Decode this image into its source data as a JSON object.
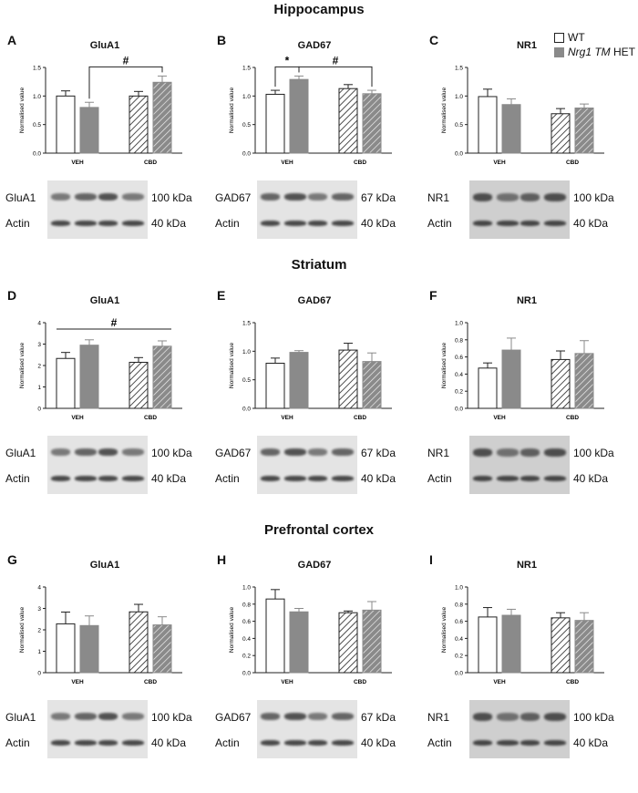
{
  "sections": [
    "Hippocampus",
    "Striatum",
    "Prefrontal cortex"
  ],
  "legend": {
    "wt": "WT",
    "het_italic": "Nrg1 TM",
    "het_suffix": " HET"
  },
  "colors": {
    "het_bar": "#8a8a8a",
    "wt_bar": "#ffffff",
    "axis": "#222222",
    "blot_bg": "#d9d9d9",
    "band": "#2b2b2b"
  },
  "ylabel": "Normalised value",
  "group_labels": [
    "VEH",
    "CBD"
  ],
  "panels": [
    {
      "letter": "A",
      "title": "GluA1",
      "blot": {
        "protein": "GluA1",
        "size": "100 kDa",
        "ctrl": "Actin",
        "ctrl_size": "40 kDa"
      },
      "chart_data": {
        "type": "bar",
        "categories": [
          "VEH",
          "CBD"
        ],
        "ylim": [
          0,
          1.5
        ],
        "yticks": [
          0.0,
          0.5,
          1.0,
          1.5
        ],
        "series": [
          {
            "name": "WT",
            "values": [
              1.0,
              1.0
            ],
            "errors": [
              0.09,
              0.08
            ]
          },
          {
            "name": "Nrg1 TM HET",
            "values": [
              0.8,
              1.24
            ],
            "errors": [
              0.09,
              0.11
            ]
          }
        ],
        "annotations": [
          {
            "text": "#",
            "from": "VEH HET",
            "to": "CBD HET"
          }
        ]
      }
    },
    {
      "letter": "B",
      "title": "GAD67",
      "blot": {
        "protein": "GAD67",
        "size": "67 kDa",
        "ctrl": "Actin",
        "ctrl_size": "40 kDa"
      },
      "chart_data": {
        "type": "bar",
        "categories": [
          "VEH",
          "CBD"
        ],
        "ylim": [
          0,
          1.5
        ],
        "yticks": [
          0.0,
          0.5,
          1.0,
          1.5
        ],
        "series": [
          {
            "name": "WT",
            "values": [
              1.03,
              1.13
            ],
            "errors": [
              0.07,
              0.07
            ]
          },
          {
            "name": "Nrg1 TM HET",
            "values": [
              1.29,
              1.04
            ],
            "errors": [
              0.06,
              0.06
            ]
          }
        ],
        "annotations": [
          {
            "text": "*",
            "from": "VEH WT",
            "to": "VEH HET"
          },
          {
            "text": "#",
            "from": "VEH HET",
            "to": "CBD HET"
          }
        ]
      }
    },
    {
      "letter": "C",
      "title": "NR1",
      "blot": {
        "protein": "NR1",
        "size": "100 kDa",
        "ctrl": "Actin",
        "ctrl_size": "40 kDa"
      },
      "chart_data": {
        "type": "bar",
        "categories": [
          "VEH",
          "CBD"
        ],
        "ylim": [
          0,
          1.5
        ],
        "yticks": [
          0.0,
          0.5,
          1.0,
          1.5
        ],
        "series": [
          {
            "name": "WT",
            "values": [
              0.99,
              0.69
            ],
            "errors": [
              0.13,
              0.09
            ]
          },
          {
            "name": "Nrg1 TM HET",
            "values": [
              0.85,
              0.79
            ],
            "errors": [
              0.1,
              0.07
            ]
          }
        ],
        "annotations": []
      }
    },
    {
      "letter": "D",
      "title": "GluA1",
      "blot": {
        "protein": "GluA1",
        "size": "100 kDa",
        "ctrl": "Actin",
        "ctrl_size": "40 kDa"
      },
      "chart_data": {
        "type": "bar",
        "categories": [
          "VEH",
          "CBD"
        ],
        "ylim": [
          0,
          4
        ],
        "yticks": [
          0,
          1,
          2,
          3,
          4
        ],
        "series": [
          {
            "name": "WT",
            "values": [
              2.33,
              2.15
            ],
            "errors": [
              0.28,
              0.22
            ]
          },
          {
            "name": "Nrg1 TM HET",
            "values": [
              2.95,
              2.9
            ],
            "errors": [
              0.25,
              0.25
            ]
          }
        ],
        "annotations": [
          {
            "text": "#",
            "from": "VEH WT",
            "to": "CBD HET",
            "level": 3.7
          }
        ]
      }
    },
    {
      "letter": "E",
      "title": "GAD67",
      "blot": {
        "protein": "GAD67",
        "size": "67 kDa",
        "ctrl": "Actin",
        "ctrl_size": "40 kDa"
      },
      "chart_data": {
        "type": "bar",
        "categories": [
          "VEH",
          "CBD"
        ],
        "ylim": [
          0,
          1.5
        ],
        "yticks": [
          0.0,
          0.5,
          1.0,
          1.5
        ],
        "series": [
          {
            "name": "WT",
            "values": [
              0.79,
              1.02
            ],
            "errors": [
              0.09,
              0.12
            ]
          },
          {
            "name": "Nrg1 TM HET",
            "values": [
              0.98,
              0.82
            ],
            "errors": [
              0.03,
              0.15
            ]
          }
        ],
        "annotations": []
      }
    },
    {
      "letter": "F",
      "title": "NR1",
      "blot": {
        "protein": "NR1",
        "size": "100 kDa",
        "ctrl": "Actin",
        "ctrl_size": "40 kDa"
      },
      "chart_data": {
        "type": "bar",
        "categories": [
          "VEH",
          "CBD"
        ],
        "ylim": [
          0,
          1.0
        ],
        "yticks": [
          0.0,
          0.2,
          0.4,
          0.6,
          0.8,
          1.0
        ],
        "series": [
          {
            "name": "WT",
            "values": [
              0.47,
              0.57
            ],
            "errors": [
              0.06,
              0.1
            ]
          },
          {
            "name": "Nrg1 TM HET",
            "values": [
              0.68,
              0.64
            ],
            "errors": [
              0.14,
              0.15
            ]
          }
        ],
        "annotations": []
      }
    },
    {
      "letter": "G",
      "title": "GluA1",
      "blot": {
        "protein": "GluA1",
        "size": "100 kDa",
        "ctrl": "Actin",
        "ctrl_size": "40 kDa"
      },
      "chart_data": {
        "type": "bar",
        "categories": [
          "VEH",
          "CBD"
        ],
        "ylim": [
          0,
          4
        ],
        "yticks": [
          0,
          1,
          2,
          3,
          4
        ],
        "series": [
          {
            "name": "WT",
            "values": [
              2.28,
              2.84
            ],
            "errors": [
              0.55,
              0.35
            ]
          },
          {
            "name": "Nrg1 TM HET",
            "values": [
              2.2,
              2.23
            ],
            "errors": [
              0.45,
              0.38
            ]
          }
        ],
        "annotations": []
      }
    },
    {
      "letter": "H",
      "title": "GAD67",
      "blot": {
        "protein": "GAD67",
        "size": "67 kDa",
        "ctrl": "Actin",
        "ctrl_size": "40 kDa"
      },
      "chart_data": {
        "type": "bar",
        "categories": [
          "VEH",
          "CBD"
        ],
        "ylim": [
          0,
          1.0
        ],
        "yticks": [
          0.0,
          0.2,
          0.4,
          0.6,
          0.8,
          1.0
        ],
        "series": [
          {
            "name": "WT",
            "values": [
              0.86,
              0.7
            ],
            "errors": [
              0.11,
              0.02
            ]
          },
          {
            "name": "Nrg1 TM HET",
            "values": [
              0.71,
              0.73
            ],
            "errors": [
              0.04,
              0.1
            ]
          }
        ],
        "annotations": []
      }
    },
    {
      "letter": "I",
      "title": "NR1",
      "blot": {
        "protein": "NR1",
        "size": "100 kDa",
        "ctrl": "Actin",
        "ctrl_size": "40 kDa"
      },
      "chart_data": {
        "type": "bar",
        "categories": [
          "VEH",
          "CBD"
        ],
        "ylim": [
          0,
          1.0
        ],
        "yticks": [
          0.0,
          0.2,
          0.4,
          0.6,
          0.8,
          1.0
        ],
        "series": [
          {
            "name": "WT",
            "values": [
              0.65,
              0.64
            ],
            "errors": [
              0.11,
              0.06
            ]
          },
          {
            "name": "Nrg1 TM HET",
            "values": [
              0.67,
              0.61
            ],
            "errors": [
              0.07,
              0.09
            ]
          }
        ],
        "annotations": []
      }
    }
  ]
}
